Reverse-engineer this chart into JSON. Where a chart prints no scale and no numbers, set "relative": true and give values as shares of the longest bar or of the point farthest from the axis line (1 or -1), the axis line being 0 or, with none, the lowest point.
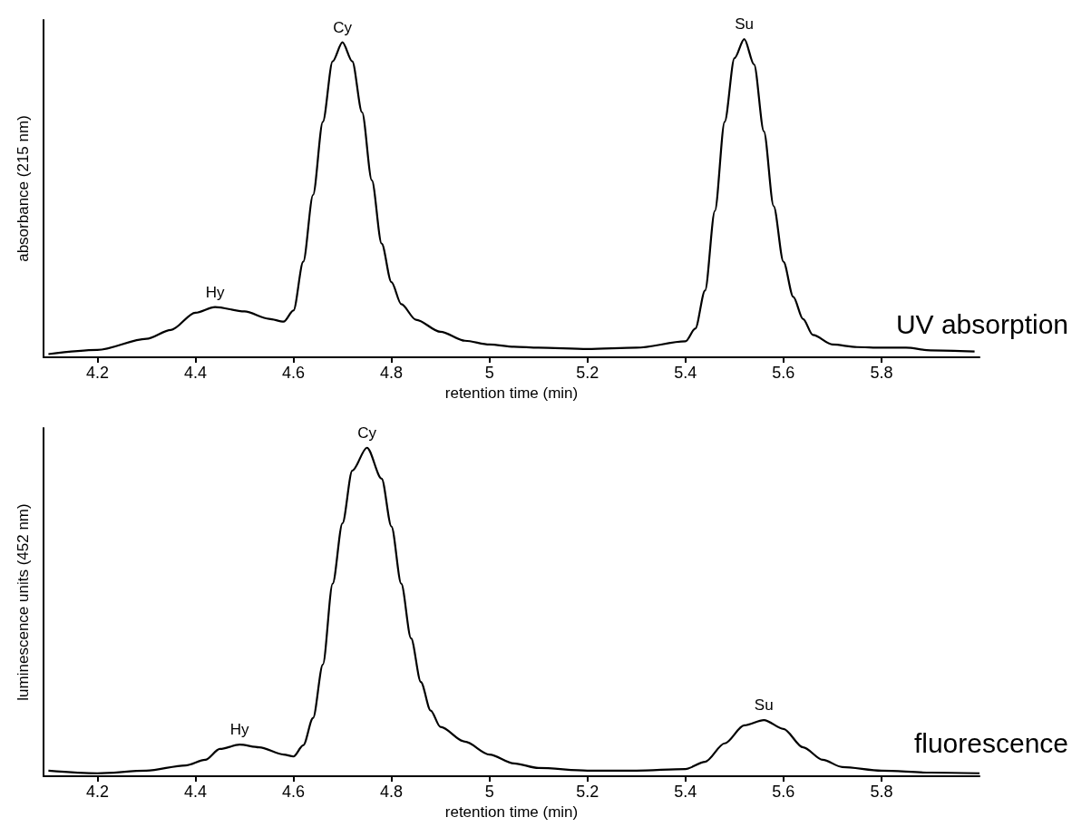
{
  "chart_data": [
    {
      "type": "line",
      "xlabel": "retention time (min)",
      "ylabel": "absorbance (215 nm)",
      "relative": true,
      "color": "#000000",
      "xlim": [
        4.09,
        6.0
      ],
      "xticks": [
        4.2,
        4.4,
        4.6,
        4.8,
        5,
        5.2,
        5.4,
        5.6,
        5.8
      ],
      "x": [
        4.1,
        4.2,
        4.3,
        4.35,
        4.4,
        4.44,
        4.5,
        4.55,
        4.58,
        4.6,
        4.62,
        4.64,
        4.66,
        4.68,
        4.7,
        4.72,
        4.74,
        4.76,
        4.78,
        4.8,
        4.82,
        4.85,
        4.9,
        4.95,
        5.0,
        5.05,
        5.1,
        5.2,
        5.3,
        5.4,
        5.42,
        5.44,
        5.46,
        5.48,
        5.5,
        5.52,
        5.54,
        5.56,
        5.58,
        5.6,
        5.62,
        5.64,
        5.66,
        5.7,
        5.75,
        5.8,
        5.85,
        5.9,
        5.99
      ],
      "values": [
        0.01,
        0.023,
        0.058,
        0.086,
        0.14,
        0.158,
        0.144,
        0.121,
        0.112,
        0.147,
        0.3,
        0.51,
        0.74,
        0.93,
        0.99,
        0.93,
        0.77,
        0.556,
        0.357,
        0.236,
        0.167,
        0.118,
        0.08,
        0.052,
        0.04,
        0.033,
        0.03,
        0.026,
        0.03,
        0.05,
        0.09,
        0.21,
        0.46,
        0.74,
        0.94,
        1.0,
        0.92,
        0.71,
        0.475,
        0.3,
        0.19,
        0.12,
        0.07,
        0.04,
        0.032,
        0.03,
        0.03,
        0.022,
        0.018
      ],
      "annotations": [
        {
          "text": "Hy",
          "x": 4.44,
          "y": 0.158
        },
        {
          "text": "Cy",
          "x": 4.7,
          "y": 0.99
        },
        {
          "text": "Su",
          "x": 5.52,
          "y": 1.0
        },
        "UV absorption"
      ]
    },
    {
      "type": "line",
      "xlabel": "retention time (min)",
      "ylabel": "luminescence units (452 nm)",
      "relative": true,
      "color": "#000000",
      "xlim": [
        4.09,
        6.0
      ],
      "xticks": [
        4.2,
        4.4,
        4.6,
        4.8,
        5,
        5.2,
        5.4,
        5.6,
        5.8
      ],
      "x": [
        4.1,
        4.2,
        4.3,
        4.38,
        4.42,
        4.45,
        4.49,
        4.53,
        4.58,
        4.6,
        4.62,
        4.64,
        4.66,
        4.68,
        4.7,
        4.72,
        4.75,
        4.78,
        4.8,
        4.82,
        4.84,
        4.86,
        4.88,
        4.9,
        4.95,
        5.0,
        5.05,
        5.1,
        5.2,
        5.3,
        5.4,
        5.44,
        5.48,
        5.52,
        5.56,
        5.6,
        5.64,
        5.68,
        5.72,
        5.8,
        5.9,
        6.0
      ],
      "values": [
        0.017,
        0.009,
        0.017,
        0.033,
        0.05,
        0.083,
        0.096,
        0.088,
        0.066,
        0.06,
        0.094,
        0.177,
        0.34,
        0.586,
        0.77,
        0.93,
        1.0,
        0.906,
        0.76,
        0.586,
        0.42,
        0.287,
        0.2,
        0.15,
        0.105,
        0.066,
        0.039,
        0.025,
        0.017,
        0.017,
        0.022,
        0.044,
        0.1,
        0.155,
        0.171,
        0.144,
        0.088,
        0.05,
        0.028,
        0.017,
        0.011,
        0.009
      ],
      "annotations": [
        {
          "text": "Hy",
          "x": 4.49,
          "y": 0.096
        },
        {
          "text": "Cy",
          "x": 4.75,
          "y": 1.0
        },
        {
          "text": "Su",
          "x": 5.56,
          "y": 0.171
        },
        "fluorescence"
      ]
    }
  ]
}
